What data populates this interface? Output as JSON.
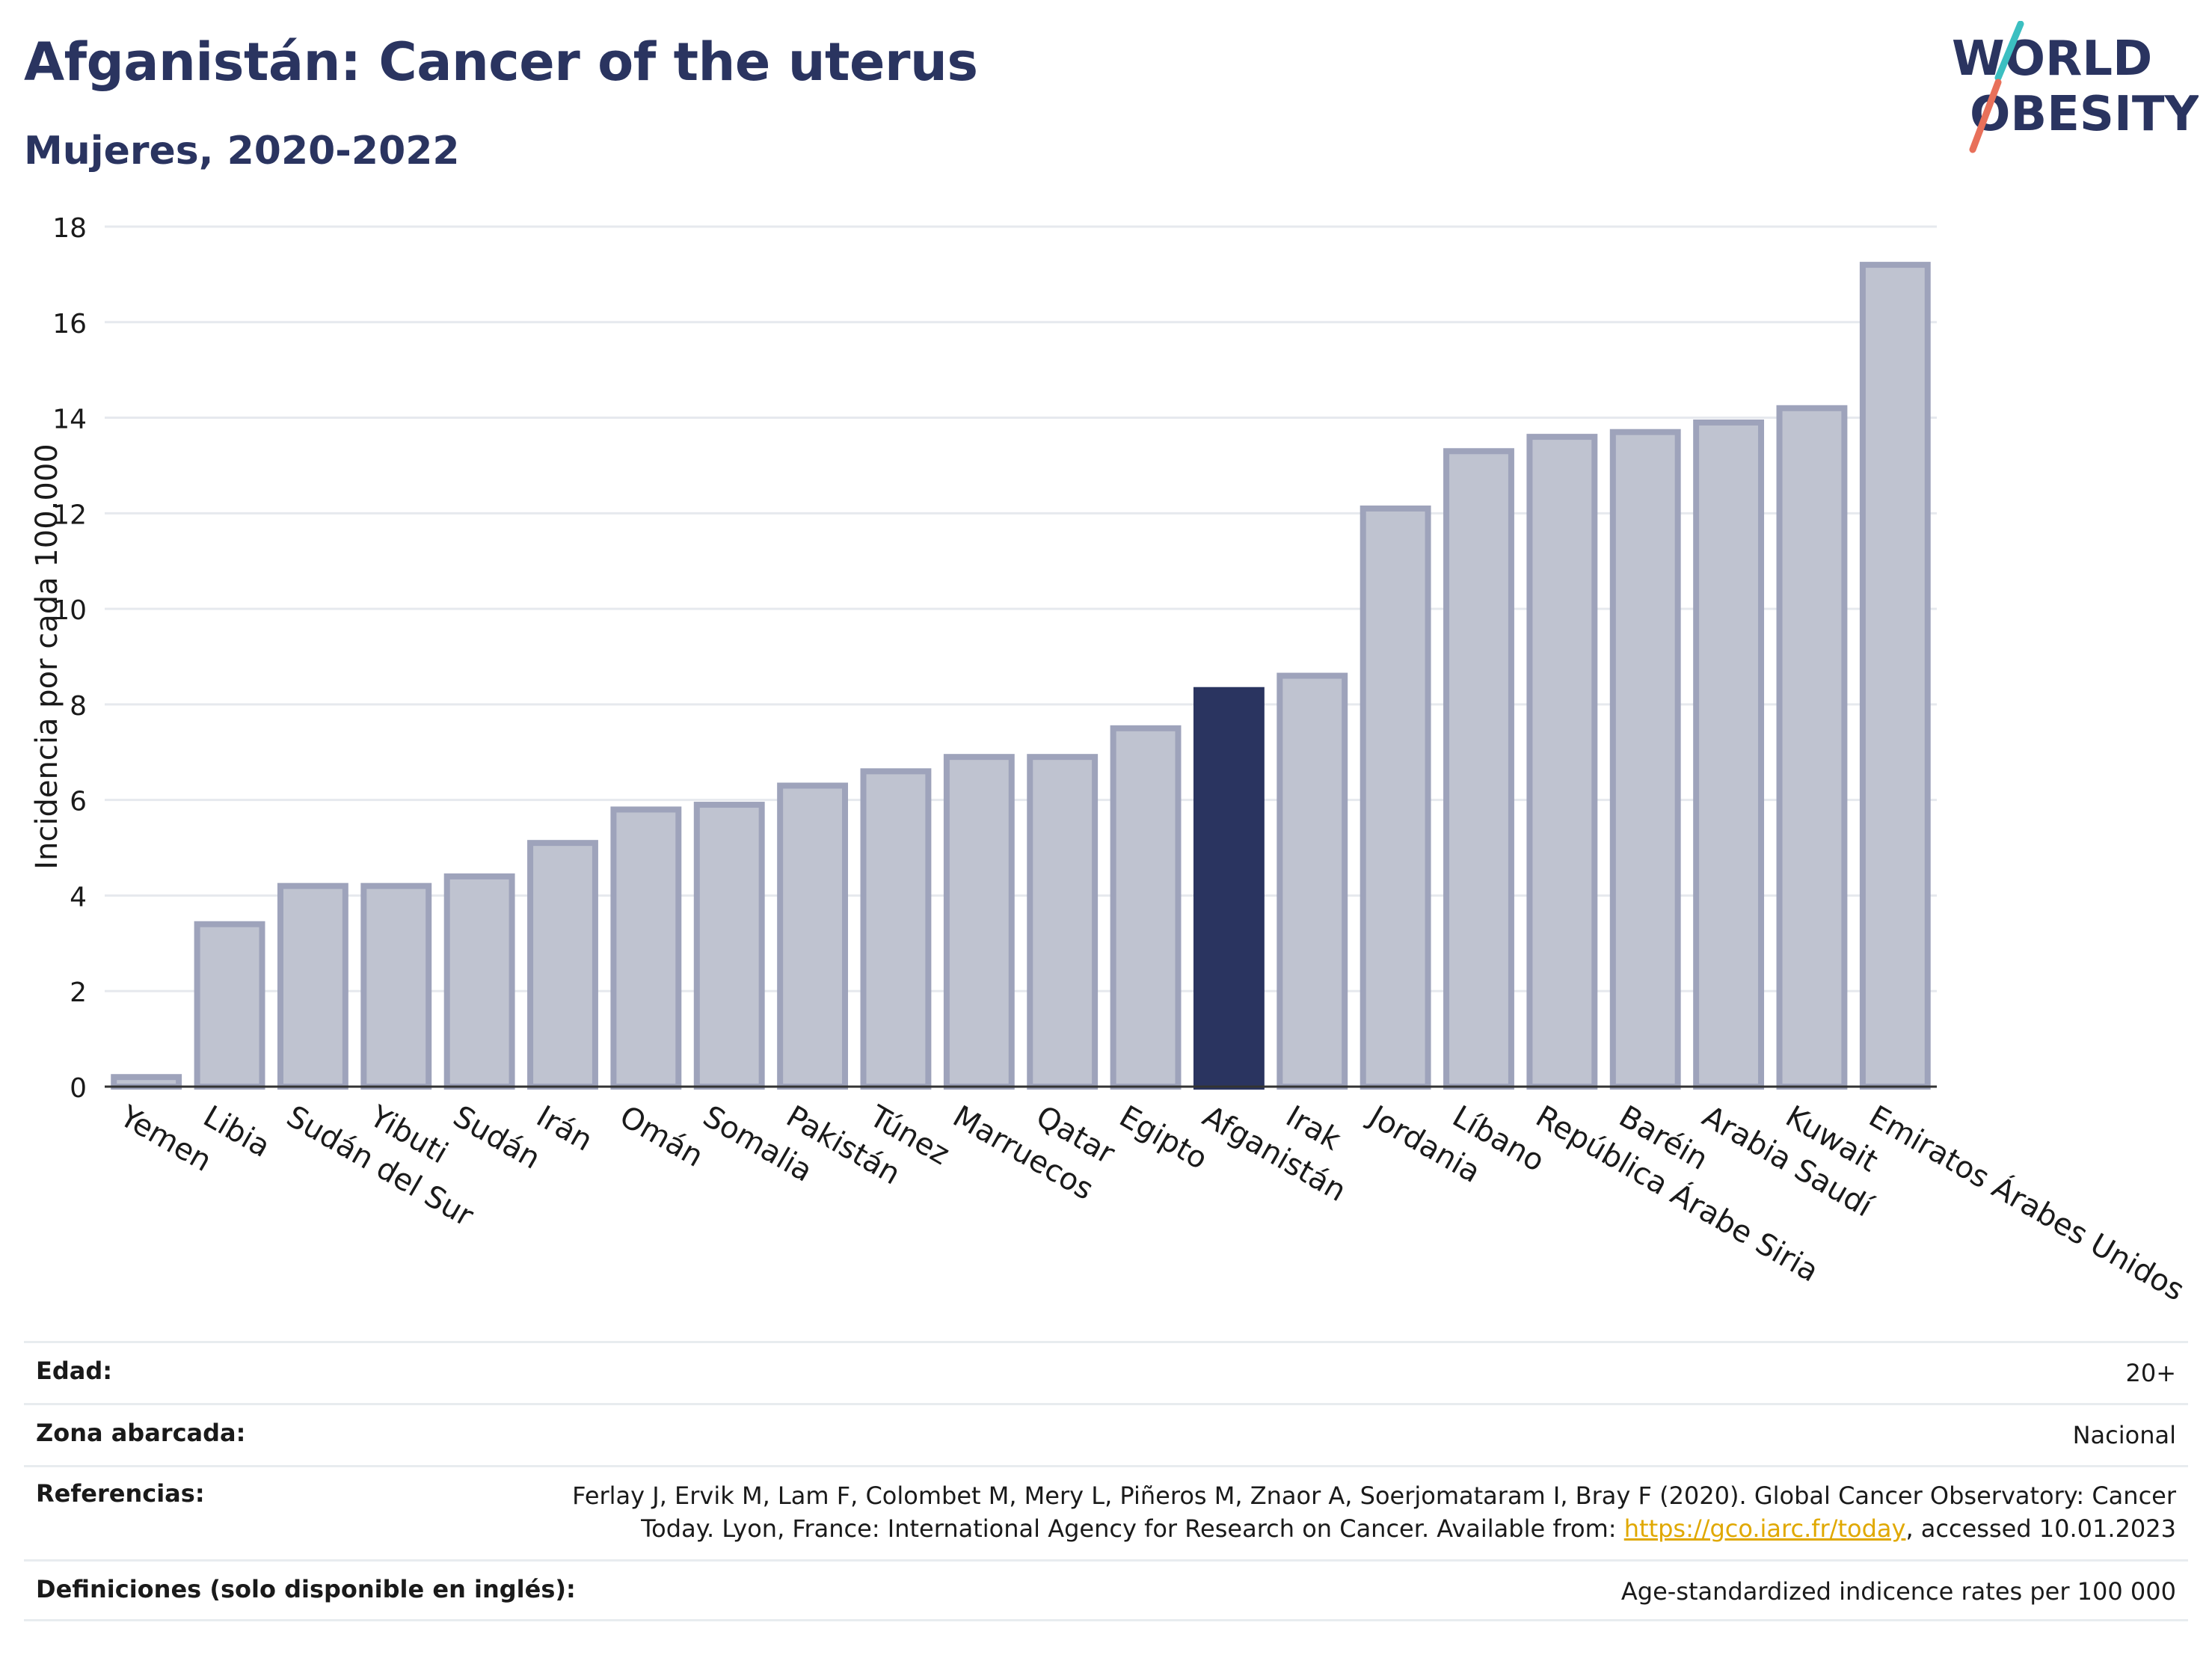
{
  "header": {
    "title": "Afganistán: Cancer of the uterus",
    "subtitle": "Mujeres, 2020-2022"
  },
  "logo": {
    "line1": "WORLD",
    "line2": "OBESITY",
    "colors": {
      "text": "#2a3460",
      "slash_top": "#3bbfc1",
      "slash_bottom": "#e8705a"
    }
  },
  "colors": {
    "bar_fill": "#bfc3d0",
    "bar_stroke": "#9ea3bb",
    "highlight": "#2a3460",
    "grid": "#e6e9ee"
  },
  "chart_data": {
    "type": "bar",
    "title": "Afganistán: Cancer of the uterus",
    "subtitle": "Mujeres, 2020-2022",
    "ylabel": "Incidencia por cada 100.000",
    "xlabel": "",
    "ylim": [
      0,
      18
    ],
    "yticks": [
      0,
      2,
      4,
      6,
      8,
      10,
      12,
      14,
      16,
      18
    ],
    "grid": true,
    "highlight": "Afganistán",
    "categories": [
      "Yemen",
      "Libia",
      "Sudán del Sur",
      "Yibuti",
      "Sudán",
      "Irán",
      "Omán",
      "Somalia",
      "Pakistán",
      "Túnez",
      "Marruecos",
      "Qatar",
      "Egipto",
      "Afganistán",
      "Irak",
      "Jordania",
      "Líbano",
      "República Árabe Siria",
      "Baréin",
      "Arabia Saudí",
      "Kuwait",
      "Emiratos Árabes Unidos"
    ],
    "values": [
      0.2,
      3.4,
      4.2,
      4.2,
      4.4,
      5.1,
      5.8,
      5.9,
      6.3,
      6.6,
      6.9,
      6.9,
      7.5,
      8.3,
      8.6,
      12.1,
      13.3,
      13.6,
      13.7,
      13.9,
      14.2,
      17.2
    ]
  },
  "info": {
    "age_label": "Edad:",
    "age_value": "20+",
    "area_label": "Zona abarcada:",
    "area_value": "Nacional",
    "ref_label": "Referencias:",
    "ref_line1": "Ferlay J, Ervik M, Lam F, Colombet M, Mery L, Piñeros M, Znaor A, Soerjomataram I, Bray F (2020). Global Cancer Observatory: Cancer",
    "ref_line2_before": "Today. Lyon, France: International Agency for Research on Cancer. Available from: ",
    "ref_link": "https://gco.iarc.fr/today",
    "ref_line2_after": ", accessed 10.01.2023",
    "def_label": "Definiciones (solo disponible en inglés):",
    "def_value": "Age-standardized indicence rates per 100 000"
  }
}
